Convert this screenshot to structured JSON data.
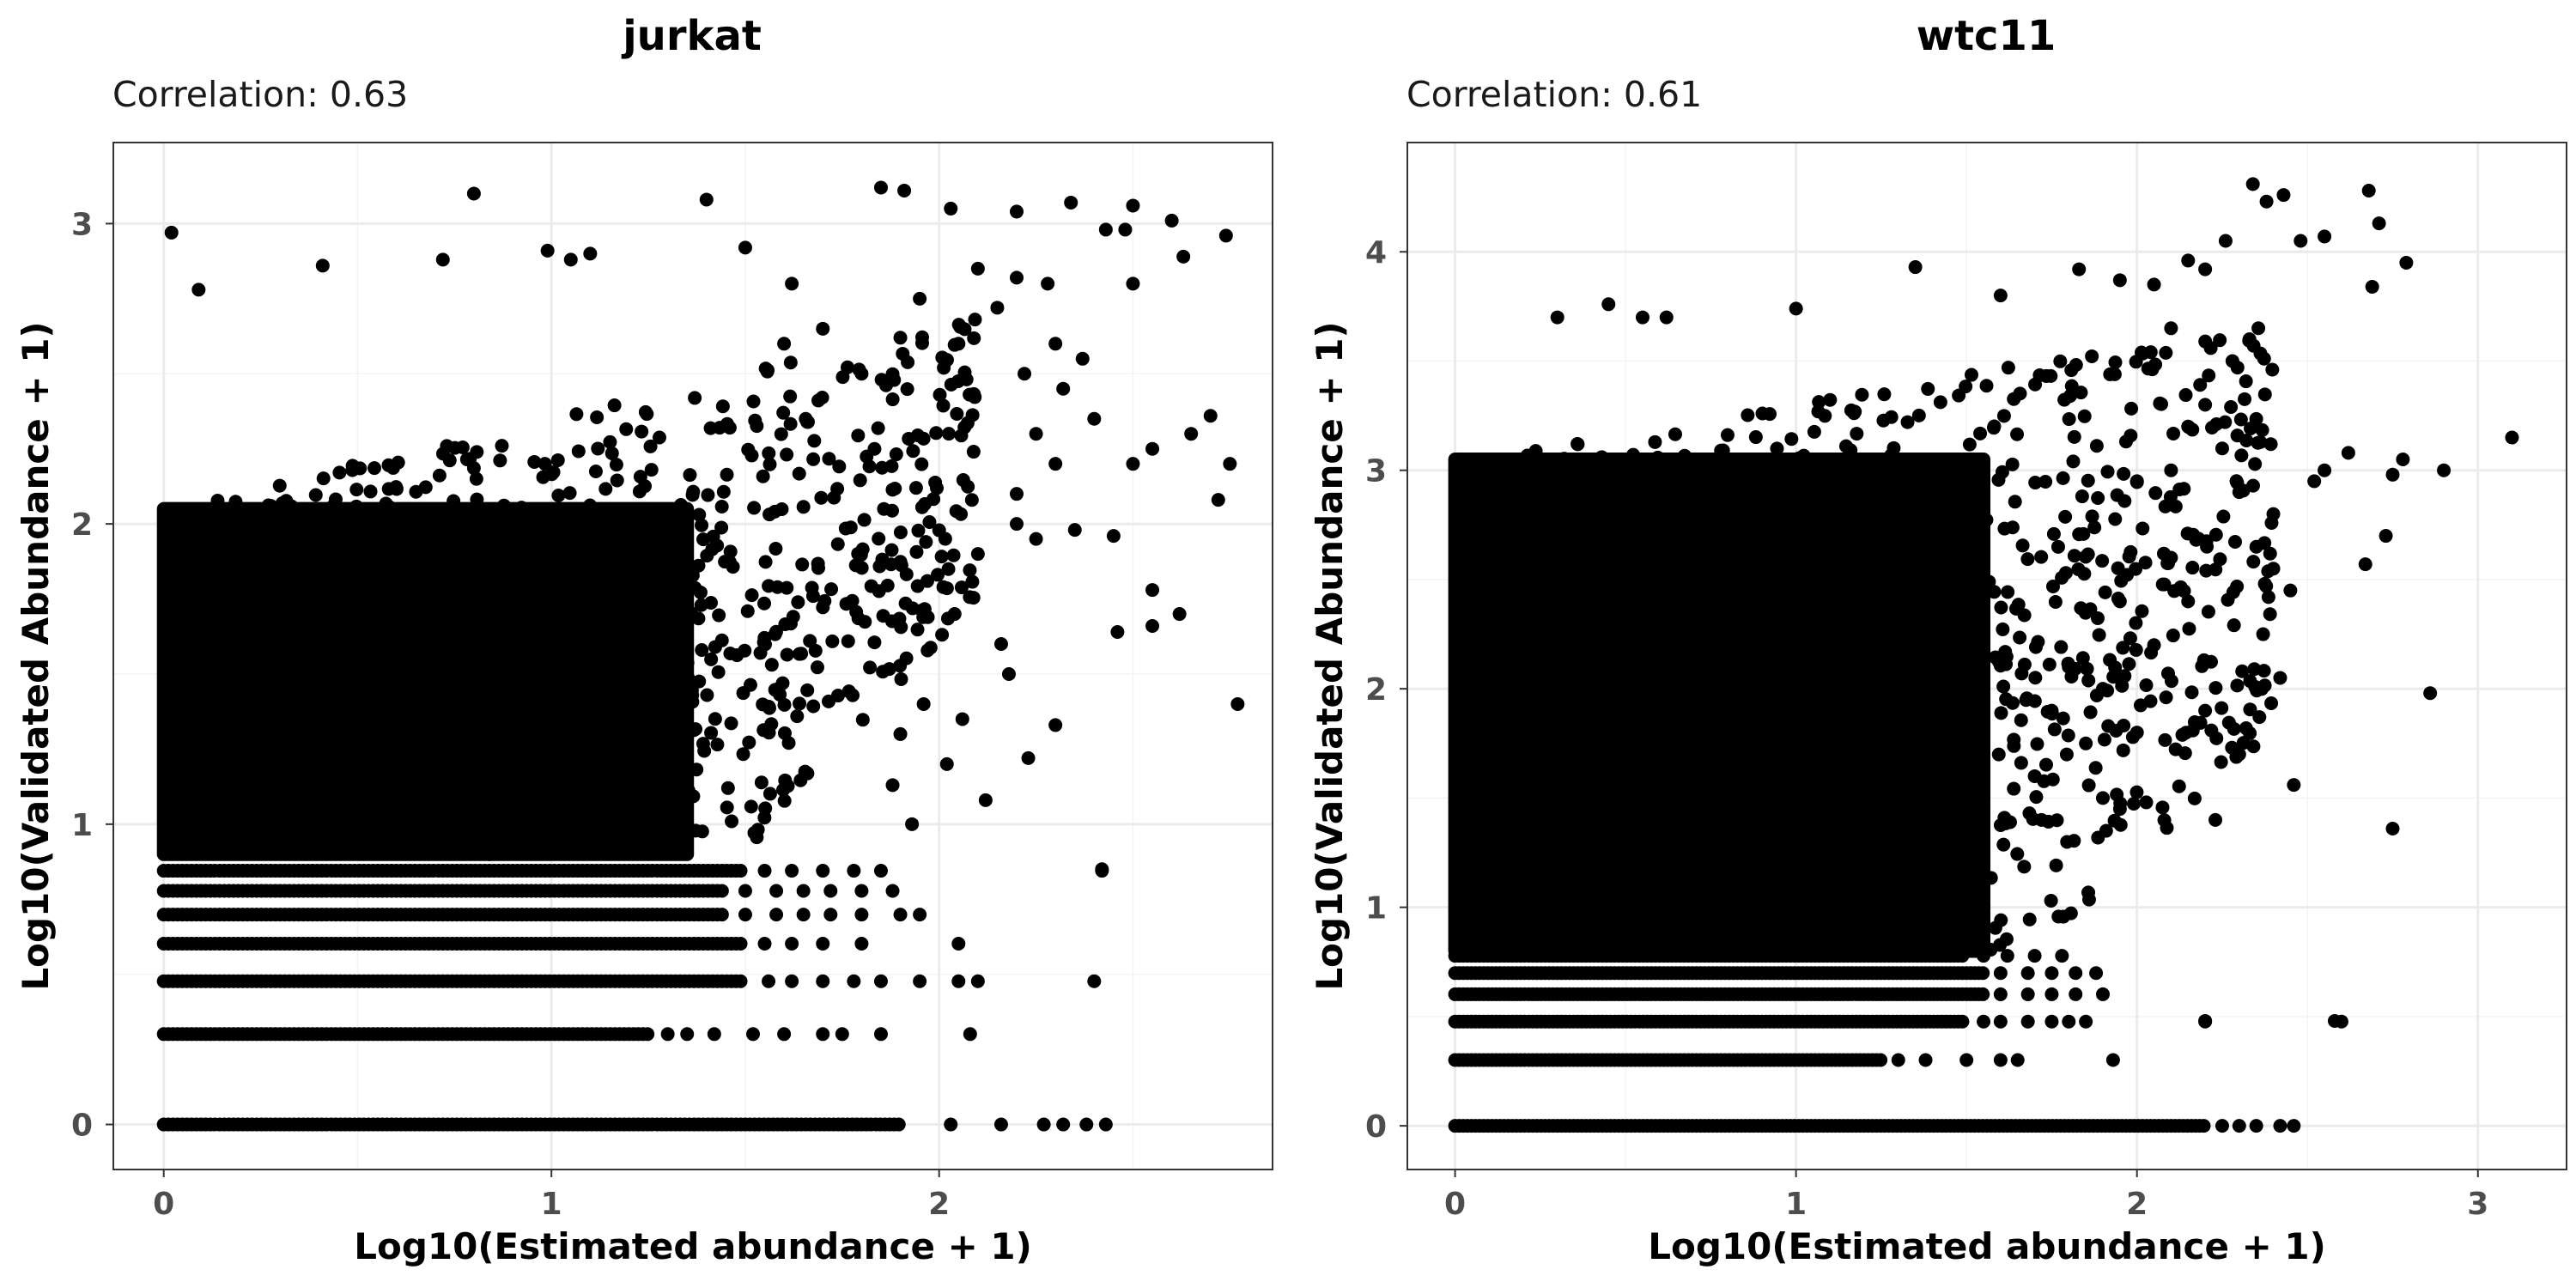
{
  "chart_data": [
    {
      "type": "scatter",
      "title": "jurkat",
      "subtitle": "Correlation: 0.63",
      "xlabel": "Log10(Estimated abundance + 1)",
      "ylabel": "Log10(Validated Abundance + 1)",
      "xlim": [
        -0.13,
        2.86
      ],
      "ylim": [
        -0.15,
        3.27
      ],
      "xticks": [
        0,
        1,
        2
      ],
      "yticks": [
        0,
        1,
        2,
        3
      ],
      "grid": true,
      "point_color": "#000000",
      "dense_region": {
        "x": [
          0,
          1.35
        ],
        "y": [
          0.9,
          2.05
        ]
      },
      "bands": [
        {
          "y": 0,
          "x": [
            0,
            1.9
          ],
          "sparse": [
            2.03,
            2.16,
            2.27,
            2.32,
            2.38,
            2.43
          ]
        },
        {
          "y": 0.301,
          "x": [
            0,
            1.25
          ],
          "sparse": [
            1.3,
            1.35,
            1.42,
            1.52,
            1.6,
            1.7,
            1.75,
            1.85,
            2.08
          ]
        },
        {
          "y": 0.477,
          "x": [
            0,
            1.5
          ],
          "sparse": [
            1.56,
            1.62,
            1.7,
            1.78,
            1.85,
            1.95,
            2.05,
            2.1,
            2.4
          ]
        },
        {
          "y": 0.602,
          "x": [
            0,
            1.5
          ],
          "sparse": [
            1.55,
            1.62,
            1.7,
            1.8,
            2.05
          ]
        },
        {
          "y": 0.699,
          "x": [
            0,
            1.45
          ],
          "sparse": [
            1.5,
            1.58,
            1.65,
            1.72,
            1.8,
            1.9,
            1.95
          ]
        },
        {
          "y": 0.778,
          "x": [
            0,
            1.45
          ],
          "sparse": [
            1.5,
            1.58,
            1.65,
            1.72,
            1.8,
            1.88
          ]
        },
        {
          "y": 0.845,
          "x": [
            0,
            1.5
          ],
          "sparse": [
            1.55,
            1.62,
            1.7,
            1.78,
            1.85,
            2.42
          ]
        }
      ],
      "points": [
        [
          0.02,
          2.97
        ],
        [
          0.09,
          2.78
        ],
        [
          0.8,
          3.1
        ],
        [
          1.4,
          3.08
        ],
        [
          1.85,
          3.12
        ],
        [
          1.91,
          3.11
        ],
        [
          2.03,
          3.05
        ],
        [
          2.2,
          3.04
        ],
        [
          2.34,
          3.07
        ],
        [
          2.43,
          2.98
        ],
        [
          2.48,
          2.98
        ],
        [
          2.5,
          3.06
        ],
        [
          2.6,
          3.01
        ],
        [
          2.63,
          2.89
        ],
        [
          2.74,
          2.96
        ],
        [
          2.5,
          2.8
        ],
        [
          0.72,
          2.88
        ],
        [
          0.41,
          2.86
        ],
        [
          0.99,
          2.91
        ],
        [
          1.05,
          2.88
        ],
        [
          1.1,
          2.9
        ],
        [
          1.5,
          2.92
        ],
        [
          1.62,
          2.8
        ],
        [
          2.1,
          2.85
        ],
        [
          2.2,
          2.82
        ],
        [
          2.28,
          2.8
        ],
        [
          2.05,
          2.6
        ],
        [
          2.15,
          2.72
        ],
        [
          2.4,
          2.35
        ],
        [
          2.5,
          2.2
        ],
        [
          2.55,
          2.25
        ],
        [
          2.65,
          2.3
        ],
        [
          2.7,
          2.36
        ],
        [
          2.3,
          2.2
        ],
        [
          2.2,
          2.0
        ],
        [
          2.25,
          1.95
        ],
        [
          2.35,
          1.98
        ],
        [
          2.45,
          1.96
        ],
        [
          2.55,
          1.78
        ],
        [
          2.55,
          1.66
        ],
        [
          2.62,
          1.7
        ],
        [
          2.46,
          1.64
        ],
        [
          2.72,
          2.08
        ],
        [
          2.75,
          2.2
        ],
        [
          2.77,
          1.4
        ],
        [
          2.42,
          0.85
        ],
        [
          2.3,
          1.33
        ],
        [
          2.23,
          1.22
        ],
        [
          2.18,
          1.5
        ],
        [
          2.16,
          1.6
        ],
        [
          2.12,
          1.08
        ],
        [
          2.06,
          1.35
        ],
        [
          2.02,
          1.2
        ],
        [
          2.04,
          1.7
        ],
        [
          1.96,
          1.4
        ],
        [
          1.9,
          1.3
        ],
        [
          1.93,
          1.0
        ],
        [
          1.88,
          1.13
        ],
        [
          2.1,
          1.9
        ],
        [
          2.2,
          2.1
        ],
        [
          2.25,
          2.3
        ],
        [
          2.32,
          2.45
        ],
        [
          2.37,
          2.55
        ],
        [
          2.3,
          2.6
        ],
        [
          2.22,
          2.5
        ],
        [
          1.95,
          2.75
        ],
        [
          1.9,
          2.62
        ],
        [
          1.7,
          2.65
        ],
        [
          1.6,
          2.6
        ],
        [
          1.8,
          2.5
        ]
      ]
    },
    {
      "type": "scatter",
      "title": "wtc11",
      "subtitle": "Correlation: 0.61",
      "xlabel": "Log10(Estimated abundance + 1)",
      "ylabel": "Log10(Validated Abundance + 1)",
      "xlim": [
        -0.14,
        3.26
      ],
      "ylim": [
        -0.2,
        4.5
      ],
      "xticks": [
        0,
        1,
        2,
        3
      ],
      "yticks": [
        0,
        1,
        2,
        3,
        4
      ],
      "grid": true,
      "point_color": "#000000",
      "dense_region": {
        "x": [
          0,
          1.55
        ],
        "y": [
          0.8,
          3.05
        ]
      },
      "bands": [
        {
          "y": 0,
          "x": [
            0,
            2.2
          ],
          "sparse": [
            2.25,
            2.3,
            2.35,
            2.42,
            2.46
          ]
        },
        {
          "y": 0.301,
          "x": [
            0,
            1.25
          ],
          "sparse": [
            1.3,
            1.38,
            1.5,
            1.6,
            1.65,
            1.93
          ]
        },
        {
          "y": 0.477,
          "x": [
            0,
            1.5
          ],
          "sparse": [
            1.55,
            1.6,
            1.68,
            1.75,
            1.8,
            1.85,
            2.2,
            2.6
          ]
        },
        {
          "y": 0.602,
          "x": [
            0,
            1.55
          ],
          "sparse": [
            1.6,
            1.68,
            1.75,
            1.82,
            1.9
          ]
        },
        {
          "y": 0.699,
          "x": [
            0,
            1.55
          ],
          "sparse": [
            1.6,
            1.68,
            1.75,
            1.82,
            1.88
          ]
        },
        {
          "y": 0.778,
          "x": [
            0,
            1.5
          ],
          "sparse": [
            1.55,
            1.62,
            1.7,
            1.78
          ]
        }
      ],
      "points": [
        [
          2.68,
          4.28
        ],
        [
          2.71,
          4.13
        ],
        [
          2.79,
          3.95
        ],
        [
          2.69,
          3.84
        ],
        [
          2.55,
          4.07
        ],
        [
          2.48,
          4.05
        ],
        [
          2.43,
          4.26
        ],
        [
          2.38,
          4.23
        ],
        [
          2.34,
          4.31
        ],
        [
          2.26,
          4.05
        ],
        [
          2.2,
          3.92
        ],
        [
          2.15,
          3.96
        ],
        [
          3.1,
          3.15
        ],
        [
          2.9,
          3.0
        ],
        [
          2.78,
          3.05
        ],
        [
          2.75,
          2.98
        ],
        [
          2.73,
          2.7
        ],
        [
          2.67,
          2.57
        ],
        [
          2.62,
          3.08
        ],
        [
          2.55,
          3.0
        ],
        [
          2.52,
          2.95
        ],
        [
          2.4,
          2.8
        ],
        [
          2.45,
          2.45
        ],
        [
          2.37,
          2.25
        ],
        [
          2.42,
          2.05
        ],
        [
          2.46,
          1.56
        ],
        [
          2.3,
          1.7
        ],
        [
          2.23,
          1.4
        ],
        [
          2.2,
          1.9
        ],
        [
          2.15,
          2.4
        ],
        [
          2.1,
          2.6
        ],
        [
          2.05,
          2.2
        ],
        [
          2.0,
          1.8
        ],
        [
          1.95,
          1.45
        ],
        [
          1.9,
          1.5
        ],
        [
          1.85,
          1.75
        ],
        [
          2.58,
          0.48
        ],
        [
          2.2,
          0.48
        ],
        [
          2.75,
          1.36
        ],
        [
          2.86,
          1.98
        ],
        [
          1.35,
          3.93
        ],
        [
          1.83,
          3.92
        ],
        [
          1.95,
          3.87
        ],
        [
          2.05,
          3.85
        ],
        [
          2.1,
          3.65
        ],
        [
          1.6,
          3.8
        ],
        [
          0.3,
          3.7
        ],
        [
          0.45,
          3.76
        ],
        [
          0.62,
          3.7
        ],
        [
          0.55,
          3.7
        ],
        [
          1.0,
          3.74
        ],
        [
          2.33,
          3.6
        ],
        [
          2.28,
          3.5
        ],
        [
          2.2,
          3.3
        ],
        [
          2.15,
          3.2
        ],
        [
          2.25,
          3.1
        ],
        [
          2.3,
          2.9
        ],
        [
          2.35,
          2.65
        ],
        [
          2.4,
          2.55
        ],
        [
          2.1,
          3.0
        ],
        [
          2.0,
          2.95
        ],
        [
          1.95,
          2.4
        ],
        [
          1.8,
          2.1
        ],
        [
          1.75,
          1.9
        ],
        [
          1.7,
          1.6
        ],
        [
          1.9,
          2.0
        ]
      ]
    }
  ]
}
